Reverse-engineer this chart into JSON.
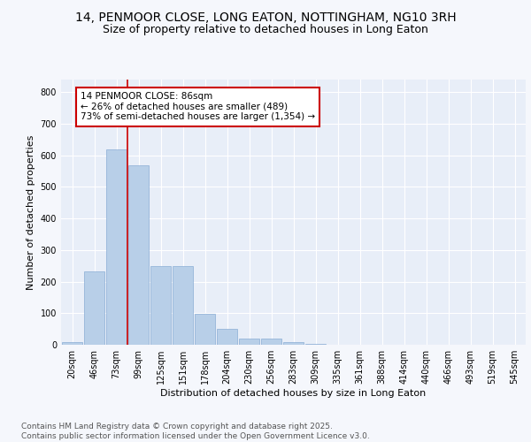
{
  "title": "14, PENMOOR CLOSE, LONG EATON, NOTTINGHAM, NG10 3RH",
  "subtitle": "Size of property relative to detached houses in Long Eaton",
  "xlabel": "Distribution of detached houses by size in Long Eaton",
  "ylabel": "Number of detached properties",
  "categories": [
    "20sqm",
    "46sqm",
    "73sqm",
    "99sqm",
    "125sqm",
    "151sqm",
    "178sqm",
    "204sqm",
    "230sqm",
    "256sqm",
    "283sqm",
    "309sqm",
    "335sqm",
    "361sqm",
    "388sqm",
    "414sqm",
    "440sqm",
    "466sqm",
    "493sqm",
    "519sqm",
    "545sqm"
  ],
  "values": [
    8,
    232,
    620,
    568,
    250,
    250,
    97,
    50,
    20,
    20,
    8,
    3,
    0,
    0,
    0,
    0,
    0,
    0,
    0,
    0,
    0
  ],
  "bar_color": "#b8cfe8",
  "bar_edge_color": "#8aadd4",
  "background_color": "#e8eef8",
  "grid_color": "#ffffff",
  "property_line_color": "#cc0000",
  "annotation_text": "14 PENMOOR CLOSE: 86sqm\n← 26% of detached houses are smaller (489)\n73% of semi-detached houses are larger (1,354) →",
  "annotation_box_color": "#cc0000",
  "ylim": [
    0,
    840
  ],
  "yticks": [
    0,
    100,
    200,
    300,
    400,
    500,
    600,
    700,
    800
  ],
  "footer_line1": "Contains HM Land Registry data © Crown copyright and database right 2025.",
  "footer_line2": "Contains public sector information licensed under the Open Government Licence v3.0.",
  "title_fontsize": 10,
  "subtitle_fontsize": 9,
  "axis_label_fontsize": 8,
  "tick_fontsize": 7,
  "annotation_fontsize": 7.5,
  "footer_fontsize": 6.5,
  "fig_bg_color": "#f5f7fc"
}
